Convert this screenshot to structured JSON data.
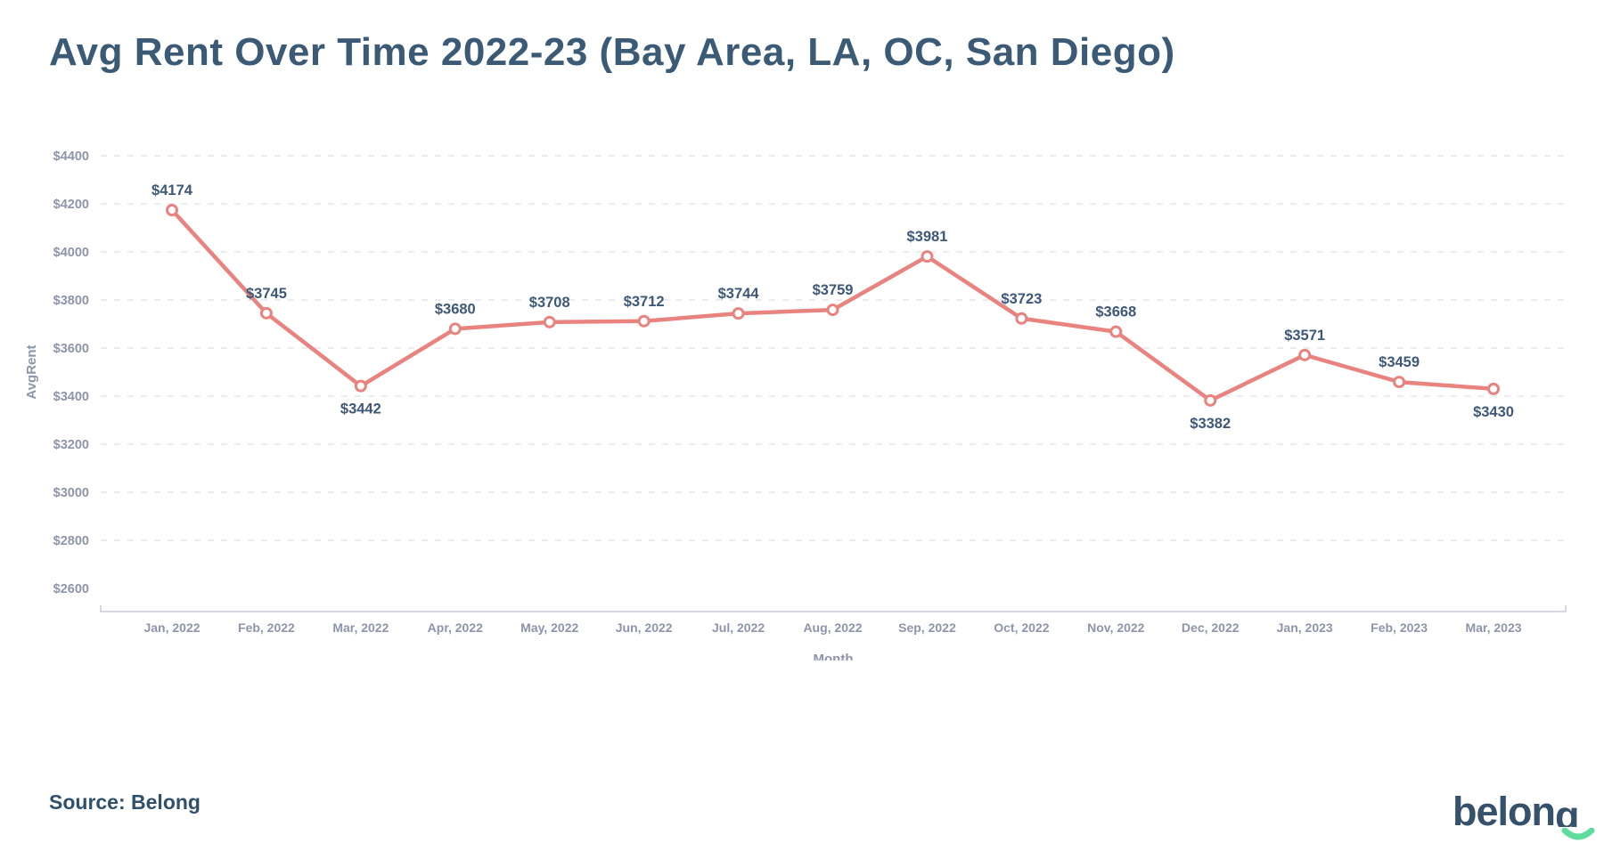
{
  "header": {
    "title": "Avg Rent Over Time 2022-23 (Bay Area, LA, OC, San Diego)"
  },
  "chart_data": {
    "type": "line",
    "title": "Avg Rent Over Time 2022-23 (Bay Area, LA, OC, San Diego)",
    "xlabel": "Month",
    "ylabel": "AvgRent",
    "categories": [
      "Jan, 2022",
      "Feb, 2022",
      "Mar, 2022",
      "Apr, 2022",
      "May, 2022",
      "Jun, 2022",
      "Jul, 2022",
      "Aug, 2022",
      "Sep, 2022",
      "Oct, 2022",
      "Nov, 2022",
      "Dec, 2022",
      "Jan, 2023",
      "Feb, 2023",
      "Mar, 2023"
    ],
    "values": [
      4174,
      3745,
      3442,
      3680,
      3708,
      3712,
      3744,
      3759,
      3981,
      3723,
      3668,
      3382,
      3571,
      3459,
      3430
    ],
    "point_labels": [
      "$4174",
      "$3745",
      "$3442",
      "$3680",
      "$3708",
      "$3712",
      "$3744",
      "$3759",
      "$3981",
      "$3723",
      "$3668",
      "$3382",
      "$3571",
      "$3459",
      "$3430"
    ],
    "labels_below_indices": [
      2,
      11,
      14
    ],
    "y_ticks": [
      2600,
      2800,
      3000,
      3200,
      3400,
      3600,
      3800,
      4000,
      4200,
      4400
    ],
    "y_tick_labels": [
      "$2600",
      "$2800",
      "$3000",
      "$3200",
      "$3400",
      "$3600",
      "$3800",
      "$4000",
      "$4200",
      "$4400"
    ],
    "gridline_ticks": [
      2800,
      3000,
      3200,
      3400,
      3600,
      3800,
      4000,
      4200,
      4400
    ],
    "ylim": [
      2500,
      4400
    ],
    "grid": "horizontal-dashed",
    "legend": "none",
    "marker": "open-circle",
    "colors": {
      "line": "#e8837f",
      "marker_fill": "#ffffff",
      "point_label": "#3e5878",
      "tick_label": "#8d95ab",
      "axis_line": "#c9ccd6",
      "gridline": "#e4e6ec"
    }
  },
  "footer": {
    "source": "Source: Belong",
    "logo_text": "belong",
    "logo_colors": {
      "text": "#36516c",
      "smile": "#5ddc9c"
    }
  }
}
